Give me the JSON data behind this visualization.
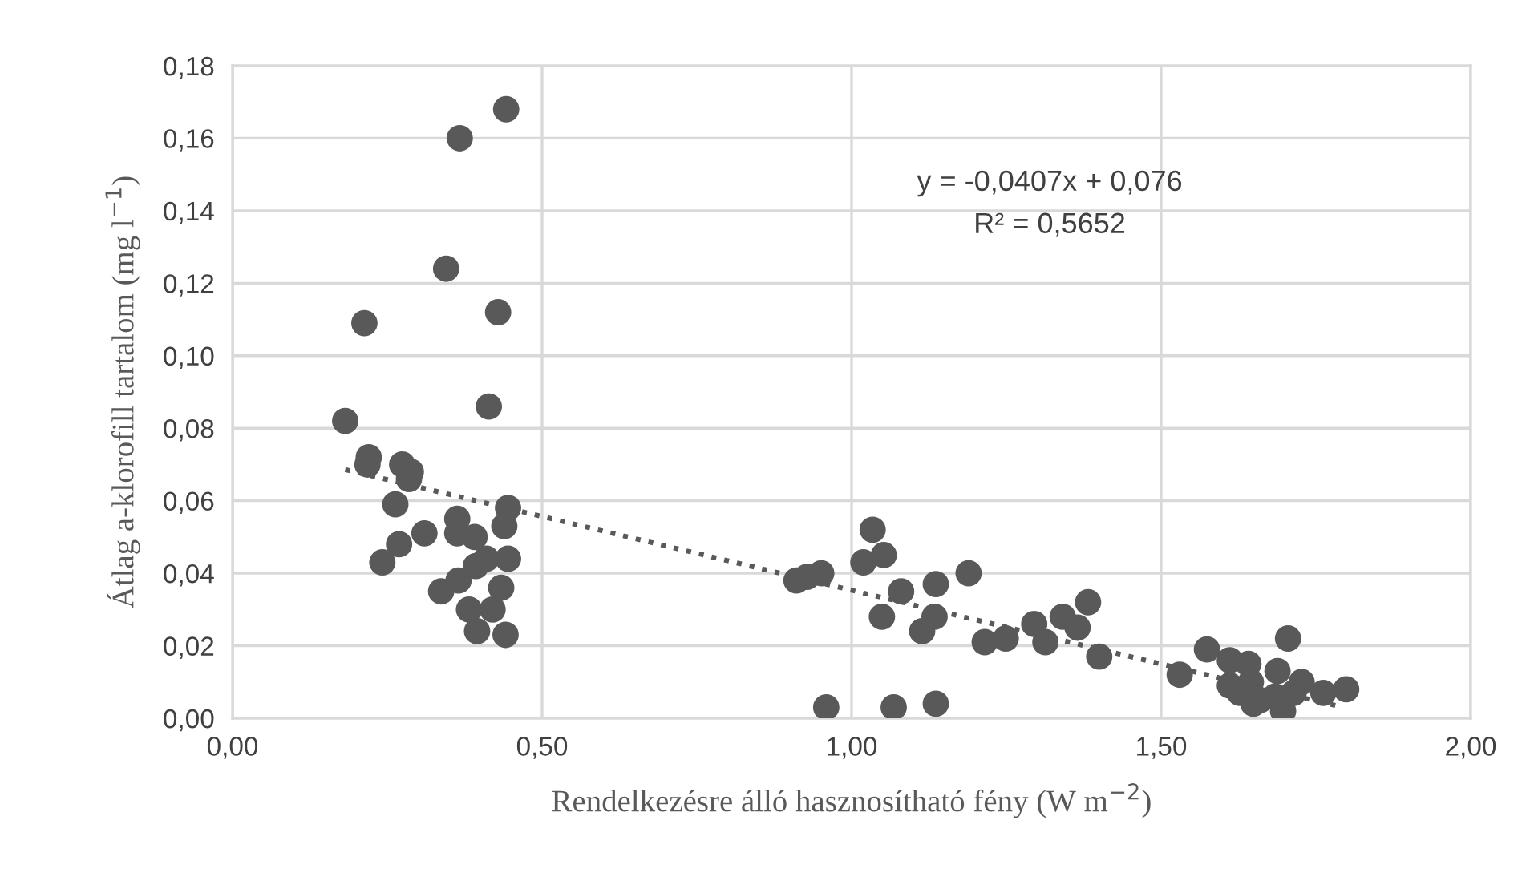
{
  "chart_data": {
    "type": "scatter",
    "xlabel": "Rendelkezésre álló hasznosítható fény (W m$^{−2}$)",
    "ylabel": "Átlag a-klorofill tartalom (mg l$^{−1}$)",
    "annotations": [
      "y = -0,0407x + 0,076",
      "R² = 0,5652"
    ],
    "xlim": [
      0,
      2
    ],
    "ylim": [
      0,
      0.18
    ],
    "xticks": [
      {
        "value": 0,
        "label": "0,00"
      },
      {
        "value": 0.5,
        "label": "0,50"
      },
      {
        "value": 1,
        "label": "1,00"
      },
      {
        "value": 1.5,
        "label": "1,50"
      },
      {
        "value": 2,
        "label": "2,00"
      }
    ],
    "yticks": [
      {
        "value": 0,
        "label": "0,00"
      },
      {
        "value": 0.02,
        "label": "0,02"
      },
      {
        "value": 0.04,
        "label": "0,04"
      },
      {
        "value": 0.06,
        "label": "0,06"
      },
      {
        "value": 0.08,
        "label": "0,08"
      },
      {
        "value": 0.1,
        "label": "0,10"
      },
      {
        "value": 0.12,
        "label": "0,12"
      },
      {
        "value": 0.14,
        "label": "0,14"
      },
      {
        "value": 0.16,
        "label": "0,16"
      },
      {
        "value": 0.18,
        "label": "0,18"
      }
    ],
    "grid": true,
    "legend": false,
    "series": [
      {
        "color": "#595959",
        "marker": "circle",
        "x": [
          0.442,
          0.367,
          0.345,
          0.213,
          0.429,
          0.414,
          0.182,
          0.22,
          0.218,
          0.274,
          0.288,
          0.285,
          0.263,
          0.363,
          0.445,
          0.439,
          0.31,
          0.363,
          0.391,
          0.269,
          0.242,
          0.41,
          0.393,
          0.445,
          0.365,
          0.434,
          0.337,
          0.382,
          0.42,
          0.395,
          0.441,
          0.911,
          0.928,
          0.951,
          0.959,
          1.034,
          1.019,
          1.052,
          1.049,
          1.08,
          1.068,
          1.136,
          1.134,
          1.114,
          1.136,
          1.189,
          1.215,
          1.249,
          1.295,
          1.313,
          1.341,
          1.365,
          1.382,
          1.4,
          1.53,
          1.574,
          1.611,
          1.641,
          1.705,
          1.688,
          1.611,
          1.627,
          1.649,
          1.697,
          1.684,
          1.727,
          1.762,
          1.799,
          1.645,
          1.66,
          1.714
        ],
        "values": [
          0.168,
          0.16,
          0.124,
          0.109,
          0.112,
          0.086,
          0.082,
          0.072,
          0.07,
          0.07,
          0.068,
          0.066,
          0.059,
          0.055,
          0.058,
          0.053,
          0.051,
          0.051,
          0.05,
          0.048,
          0.043,
          0.044,
          0.042,
          0.044,
          0.038,
          0.036,
          0.035,
          0.03,
          0.03,
          0.024,
          0.023,
          0.038,
          0.039,
          0.04,
          0.003,
          0.052,
          0.043,
          0.045,
          0.028,
          0.035,
          0.003,
          0.037,
          0.028,
          0.024,
          0.004,
          0.04,
          0.021,
          0.022,
          0.026,
          0.021,
          0.028,
          0.025,
          0.032,
          0.017,
          0.012,
          0.019,
          0.016,
          0.015,
          0.022,
          0.013,
          0.009,
          0.007,
          0.004,
          0.002,
          0.006,
          0.01,
          0.007,
          0.008,
          0.01,
          0.005,
          0.007
        ]
      },
      {
        "type": "line",
        "color": "#595959",
        "marker": "none",
        "line_style": "dotted",
        "x": [
          0.182,
          1.787
        ],
        "values": [
          0.0686,
          0.0033
        ]
      }
    ]
  }
}
